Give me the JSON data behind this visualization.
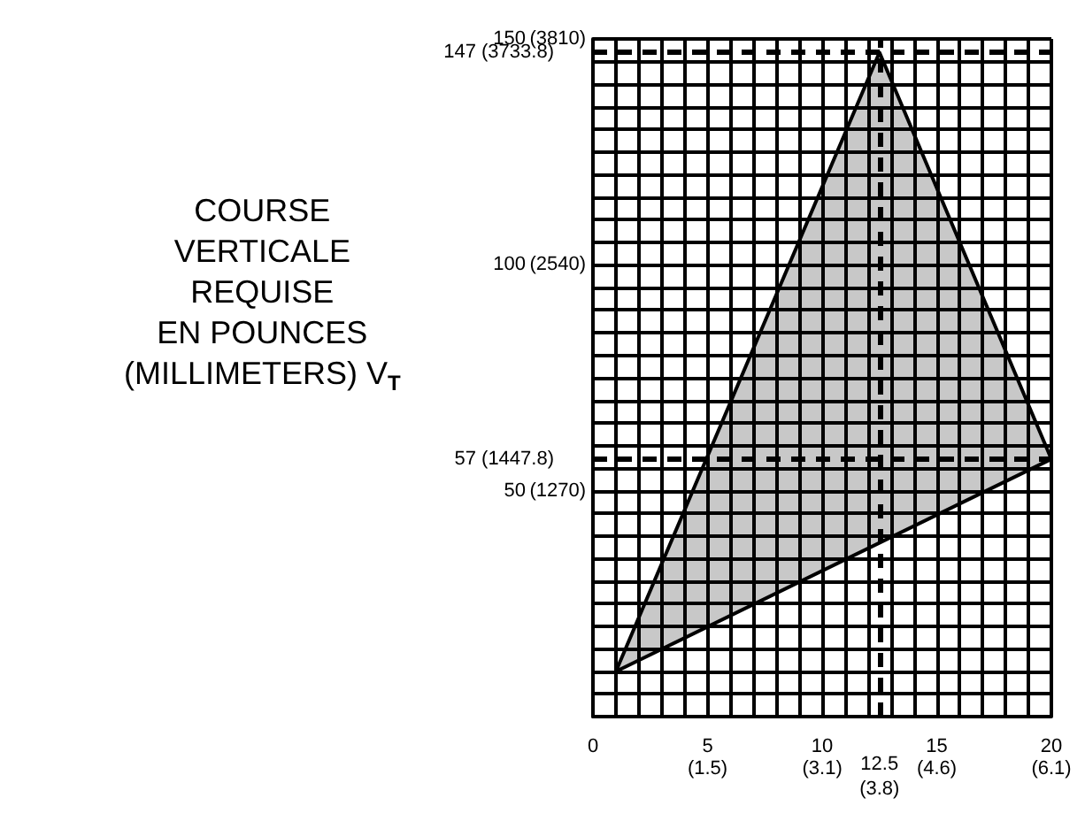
{
  "chart_data": {
    "type": "area",
    "ylabel": "COURSE\nVERTICALE\nREQUISE\nEN POUNCES\n(MILLIMETERS) V$_{T}$",
    "x": [
      1,
      12.5,
      20,
      1
    ],
    "series": [
      {
        "color": "#c8c8c8",
        "values": [
          10,
          147,
          57,
          10
        ]
      }
    ],
    "xlim": [
      0,
      20
    ],
    "ylim": [
      0,
      150
    ],
    "xticks": [
      {
        "value": 0,
        "label": "0"
      },
      {
        "value": 1,
        "label": null
      },
      {
        "value": 2,
        "label": null
      },
      {
        "value": 3,
        "label": null
      },
      {
        "value": 4,
        "label": null
      },
      5,
      {
        "value": 6,
        "label": null
      },
      {
        "value": 7,
        "label": null
      },
      {
        "value": 8,
        "label": null
      },
      {
        "value": 9,
        "label": null
      },
      10,
      {
        "value": 11,
        "label": null
      },
      {
        "value": 12,
        "label": null
      },
      {
        "value": 13,
        "label": null
      },
      {
        "value": 14,
        "label": null
      },
      15,
      {
        "value": 16,
        "label": null
      },
      {
        "value": 17,
        "label": null
      },
      {
        "value": 18,
        "label": null
      },
      {
        "value": 19,
        "label": null
      },
      20
    ],
    "x2lim": [
      0,
      6.096
    ],
    "x2ticks": [
      {
        "value": 1.524,
        "label": "(1.5)"
      },
      {
        "value": 3.05,
        "label": "(3.1)"
      },
      {
        "value": 4.572,
        "label": "(4.6)"
      },
      {
        "value": 6.096,
        "label": "(6.1)"
      }
    ],
    "y2lim": [
      0,
      3810
    ],
    "y2ticks": [
      {
        "value": 1270,
        "label": "(1270)"
      },
      {
        "value": 2540,
        "label": "(2540)"
      },
      {
        "value": 3810,
        "label": "(3810)"
      }
    ],
    "yticks": [
      {
        "value": 0,
        "label": null
      },
      {
        "value": 5,
        "label": null
      },
      {
        "value": 10,
        "label": null
      },
      {
        "value": 15,
        "label": null
      },
      {
        "value": 20,
        "label": null
      },
      {
        "value": 25,
        "label": null
      },
      {
        "value": 30,
        "label": null
      },
      {
        "value": 35,
        "label": null
      },
      {
        "value": 40,
        "label": null
      },
      {
        "value": 45,
        "label": null
      },
      50,
      {
        "value": 55,
        "label": null
      },
      {
        "value": 60,
        "label": null
      },
      {
        "value": 65,
        "label": null
      },
      {
        "value": 70,
        "label": null
      },
      {
        "value": 75,
        "label": null
      },
      {
        "value": 80,
        "label": null
      },
      {
        "value": 85,
        "label": null
      },
      {
        "value": 90,
        "label": null
      },
      {
        "value": 95,
        "label": null
      },
      100,
      {
        "value": 105,
        "label": null
      },
      {
        "value": 110,
        "label": null
      },
      {
        "value": 115,
        "label": null
      },
      {
        "value": 120,
        "label": null
      },
      {
        "value": 125,
        "label": null
      },
      {
        "value": 130,
        "label": null
      },
      {
        "value": 135,
        "label": null
      },
      {
        "value": 140,
        "label": null
      },
      {
        "value": 145,
        "label": null
      },
      150
    ],
    "grid": true,
    "line_style": "solid",
    "ref_lines": [
      {
        "axis": "y",
        "value": 147,
        "label": "147 (3733.8)",
        "line_style": "dashed"
      },
      {
        "axis": "y",
        "value": 57,
        "label": "57 (1447.8)",
        "line_style": "dashed"
      },
      {
        "axis": "x",
        "value": 12.5,
        "label": "12.5\n(3.8)",
        "line_style": "dashed"
      }
    ]
  }
}
